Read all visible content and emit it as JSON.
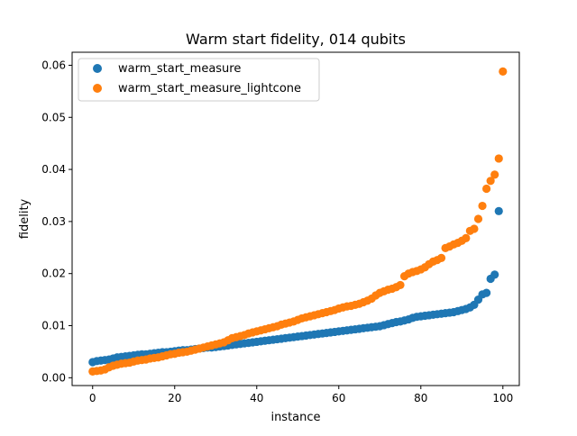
{
  "chart_data": {
    "type": "scatter",
    "title": "Warm start fidelity, 014 qubits",
    "xlabel": "instance",
    "ylabel": "fidelity",
    "xlim": [
      -5,
      104
    ],
    "ylim": [
      -0.0015,
      0.0625
    ],
    "xticks": [
      0,
      20,
      40,
      60,
      80,
      100
    ],
    "xtick_labels": [
      "0",
      "20",
      "40",
      "60",
      "80",
      "100"
    ],
    "yticks": [
      0.0,
      0.01,
      0.02,
      0.03,
      0.04,
      0.05,
      0.06
    ],
    "ytick_labels": [
      "0.00",
      "0.01",
      "0.02",
      "0.03",
      "0.04",
      "0.05",
      "0.06"
    ],
    "grid": false,
    "legend": "upper left",
    "series": [
      {
        "name": "warm_start_measure",
        "color": "#1f77b4",
        "y": [
          0.003,
          0.0032,
          0.0033,
          0.0034,
          0.0035,
          0.0037,
          0.0039,
          0.004,
          0.0041,
          0.0042,
          0.0043,
          0.0044,
          0.0045,
          0.0045,
          0.0046,
          0.0047,
          0.0048,
          0.0049,
          0.0049,
          0.005,
          0.0051,
          0.0052,
          0.0053,
          0.0053,
          0.0054,
          0.0055,
          0.0056,
          0.0057,
          0.0058,
          0.0058,
          0.0059,
          0.006,
          0.0061,
          0.0062,
          0.0063,
          0.0064,
          0.0065,
          0.0066,
          0.0067,
          0.0068,
          0.0069,
          0.007,
          0.0071,
          0.0072,
          0.0073,
          0.0074,
          0.0075,
          0.0076,
          0.0077,
          0.0078,
          0.0079,
          0.008,
          0.0081,
          0.0082,
          0.0083,
          0.0084,
          0.0085,
          0.0086,
          0.0087,
          0.0088,
          0.0089,
          0.009,
          0.0091,
          0.0092,
          0.0093,
          0.0094,
          0.0095,
          0.0096,
          0.0097,
          0.0098,
          0.0099,
          0.0101,
          0.0103,
          0.0105,
          0.0107,
          0.0108,
          0.011,
          0.0112,
          0.0115,
          0.0117,
          0.0118,
          0.0119,
          0.012,
          0.0121,
          0.0122,
          0.0123,
          0.0124,
          0.0125,
          0.0126,
          0.0128,
          0.013,
          0.0132,
          0.0135,
          0.014,
          0.015,
          0.016,
          0.0163,
          0.019,
          0.0198,
          0.032
        ]
      },
      {
        "name": "warm_start_measure_lightcone",
        "color": "#ff7f0e",
        "y": [
          0.0012,
          0.0013,
          0.0014,
          0.0016,
          0.002,
          0.0023,
          0.0025,
          0.0027,
          0.0028,
          0.0029,
          0.0031,
          0.0033,
          0.0034,
          0.0035,
          0.0037,
          0.0038,
          0.0039,
          0.0041,
          0.0043,
          0.0045,
          0.0046,
          0.0048,
          0.0049,
          0.005,
          0.0052,
          0.0054,
          0.0056,
          0.0058,
          0.006,
          0.0062,
          0.0064,
          0.0066,
          0.0068,
          0.0072,
          0.0076,
          0.0078,
          0.008,
          0.0082,
          0.0085,
          0.0087,
          0.0089,
          0.0091,
          0.0093,
          0.0095,
          0.0097,
          0.0099,
          0.0102,
          0.0104,
          0.0106,
          0.0108,
          0.0111,
          0.0114,
          0.0116,
          0.0118,
          0.012,
          0.0122,
          0.0124,
          0.0126,
          0.0128,
          0.013,
          0.0133,
          0.0135,
          0.0137,
          0.0138,
          0.014,
          0.0142,
          0.0145,
          0.0148,
          0.0152,
          0.0158,
          0.0163,
          0.0166,
          0.0169,
          0.0171,
          0.0174,
          0.0178,
          0.0195,
          0.02,
          0.0203,
          0.0205,
          0.0208,
          0.0212,
          0.0218,
          0.0223,
          0.0226,
          0.023,
          0.0249,
          0.0252,
          0.0256,
          0.0259,
          0.0263,
          0.0268,
          0.0282,
          0.0286,
          0.0305,
          0.033,
          0.0363,
          0.0378,
          0.039,
          0.0421,
          0.0588
        ]
      }
    ]
  }
}
